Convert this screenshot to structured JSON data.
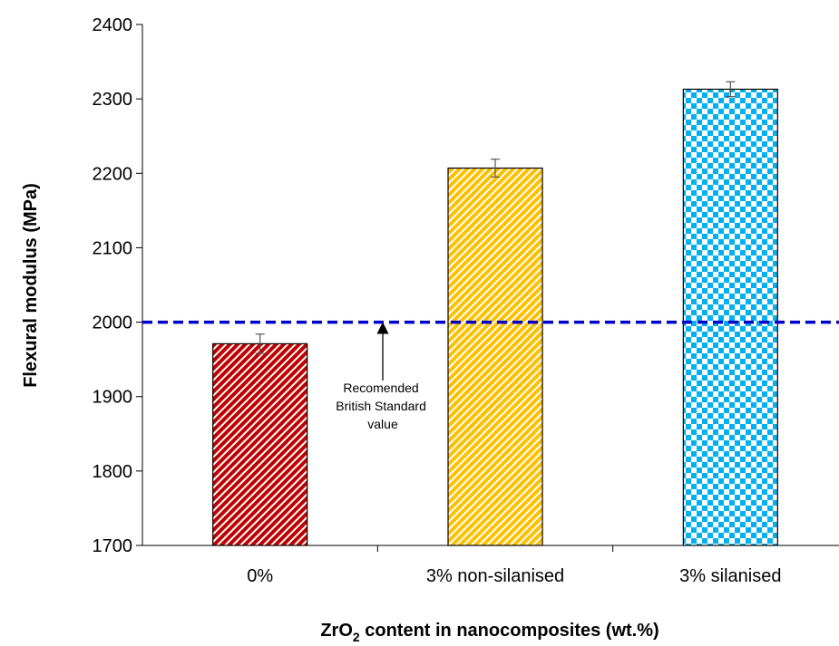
{
  "chart_data": {
    "type": "bar",
    "categories": [
      "0%",
      "3% non-silanised",
      "3% silanised"
    ],
    "values": [
      1971,
      2207,
      2313
    ],
    "errors": [
      13,
      12,
      10
    ],
    "ylim": [
      1700,
      2400
    ],
    "yticks": [
      1700,
      1800,
      1900,
      2000,
      2100,
      2200,
      2300,
      2400
    ],
    "ylabel": "Flexural modulus (MPa)",
    "xlabel": {
      "prefix": "ZrO",
      "subscript": "2",
      "suffix": " content in nanocomposites (wt.%)"
    },
    "reference_line": {
      "value": 2000,
      "color": "#0000cc",
      "style": "dashed"
    },
    "annotation": {
      "lines": [
        "Recomended",
        "British Standard",
        "value"
      ]
    },
    "bar_colors": [
      "#c00000",
      "#ffc000",
      "#00b0f0"
    ],
    "bar_patterns": [
      "diagonal-stripes",
      "diagonal-stripes",
      "checkerboard"
    ],
    "grid": false,
    "legend": "none"
  }
}
